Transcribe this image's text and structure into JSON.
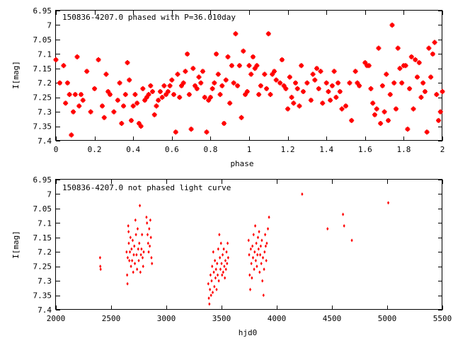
{
  "chart_data": [
    {
      "type": "scatter",
      "title": "150836-4207.0 phased with P=36.010day",
      "xlabel": "phase",
      "ylabel": "I[mag]",
      "xlim": [
        0,
        2
      ],
      "ylim": [
        6.95,
        7.4
      ],
      "y_inverted": true,
      "x_ticks": [
        "0",
        "0.2",
        "0.4",
        "0.6",
        "0.8",
        "1",
        "1.2",
        "1.4",
        "1.6",
        "1.8",
        "2"
      ],
      "y_ticks": [
        "6.95",
        "7",
        "7.05",
        "7.1",
        "7.15",
        "7.2",
        "7.25",
        "7.3",
        "7.35",
        "7.4"
      ],
      "marker_color": "#ff0000",
      "grid": false,
      "points": [
        [
          0.0,
          7.12
        ],
        [
          0.02,
          7.2
        ],
        [
          0.04,
          7.14
        ],
        [
          0.05,
          7.27
        ],
        [
          0.06,
          7.2
        ],
        [
          0.07,
          7.24
        ],
        [
          0.08,
          7.38
        ],
        [
          0.09,
          7.3
        ],
        [
          0.1,
          7.24
        ],
        [
          0.11,
          7.11
        ],
        [
          0.12,
          7.28
        ],
        [
          0.13,
          7.24
        ],
        [
          0.14,
          7.26
        ],
        [
          0.16,
          7.16
        ],
        [
          0.18,
          7.3
        ],
        [
          0.2,
          7.22
        ],
        [
          0.22,
          7.12
        ],
        [
          0.24,
          7.28
        ],
        [
          0.25,
          7.32
        ],
        [
          0.26,
          7.17
        ],
        [
          0.27,
          7.23
        ],
        [
          0.28,
          7.24
        ],
        [
          0.3,
          7.3
        ],
        [
          0.32,
          7.26
        ],
        [
          0.33,
          7.2
        ],
        [
          0.34,
          7.34
        ],
        [
          0.35,
          7.28
        ],
        [
          0.36,
          7.24
        ],
        [
          0.37,
          7.13
        ],
        [
          0.38,
          7.19
        ],
        [
          0.39,
          7.33
        ],
        [
          0.4,
          7.28
        ],
        [
          0.41,
          7.24
        ],
        [
          0.42,
          7.27
        ],
        [
          0.43,
          7.34
        ],
        [
          0.44,
          7.35
        ],
        [
          0.45,
          7.22
        ],
        [
          0.46,
          7.26
        ],
        [
          0.47,
          7.25
        ],
        [
          0.48,
          7.24
        ],
        [
          0.49,
          7.21
        ],
        [
          0.5,
          7.23
        ],
        [
          0.51,
          7.31
        ],
        [
          0.52,
          7.28
        ],
        [
          0.53,
          7.26
        ],
        [
          0.54,
          7.23
        ],
        [
          0.55,
          7.25
        ],
        [
          0.56,
          7.21
        ],
        [
          0.57,
          7.24
        ],
        [
          0.58,
          7.23
        ],
        [
          0.59,
          7.21
        ],
        [
          0.6,
          7.19
        ],
        [
          0.61,
          7.24
        ],
        [
          0.62,
          7.37
        ],
        [
          0.63,
          7.17
        ],
        [
          0.64,
          7.25
        ],
        [
          0.65,
          7.21
        ],
        [
          0.66,
          7.2
        ],
        [
          0.67,
          7.16
        ],
        [
          0.68,
          7.1
        ],
        [
          0.69,
          7.24
        ],
        [
          0.7,
          7.36
        ],
        [
          0.71,
          7.15
        ],
        [
          0.72,
          7.21
        ],
        [
          0.73,
          7.22
        ],
        [
          0.74,
          7.18
        ],
        [
          0.75,
          7.2
        ],
        [
          0.76,
          7.16
        ],
        [
          0.77,
          7.25
        ],
        [
          0.78,
          7.37
        ],
        [
          0.79,
          7.26
        ],
        [
          0.8,
          7.25
        ],
        [
          0.81,
          7.22
        ],
        [
          0.82,
          7.2
        ],
        [
          0.83,
          7.1
        ],
        [
          0.84,
          7.17
        ],
        [
          0.85,
          7.24
        ],
        [
          0.86,
          7.21
        ],
        [
          0.87,
          7.34
        ],
        [
          0.88,
          7.19
        ],
        [
          0.89,
          7.11
        ],
        [
          0.9,
          7.27
        ],
        [
          0.91,
          7.14
        ],
        [
          0.92,
          7.2
        ],
        [
          0.93,
          7.03
        ],
        [
          0.94,
          7.21
        ],
        [
          0.95,
          7.14
        ],
        [
          0.96,
          7.32
        ],
        [
          0.97,
          7.09
        ],
        [
          0.98,
          7.24
        ],
        [
          0.99,
          7.23
        ],
        [
          1.0,
          7.14
        ],
        [
          1.01,
          7.17
        ],
        [
          1.02,
          7.11
        ],
        [
          1.03,
          7.15
        ],
        [
          1.04,
          7.14
        ],
        [
          1.05,
          7.24
        ],
        [
          1.06,
          7.21
        ],
        [
          1.08,
          7.17
        ],
        [
          1.09,
          7.22
        ],
        [
          1.1,
          7.03
        ],
        [
          1.11,
          7.24
        ],
        [
          1.12,
          7.17
        ],
        [
          1.13,
          7.16
        ],
        [
          1.14,
          7.19
        ],
        [
          1.16,
          7.2
        ],
        [
          1.17,
          7.12
        ],
        [
          1.18,
          7.21
        ],
        [
          1.19,
          7.22
        ],
        [
          1.2,
          7.29
        ],
        [
          1.21,
          7.18
        ],
        [
          1.22,
          7.25
        ],
        [
          1.23,
          7.27
        ],
        [
          1.24,
          7.2
        ],
        [
          1.25,
          7.22
        ],
        [
          1.26,
          7.28
        ],
        [
          1.27,
          7.14
        ],
        [
          1.28,
          7.23
        ],
        [
          1.3,
          7.2
        ],
        [
          1.32,
          7.26
        ],
        [
          1.33,
          7.17
        ],
        [
          1.34,
          7.19
        ],
        [
          1.35,
          7.15
        ],
        [
          1.36,
          7.22
        ],
        [
          1.37,
          7.16
        ],
        [
          1.38,
          7.27
        ],
        [
          1.4,
          7.2
        ],
        [
          1.41,
          7.23
        ],
        [
          1.42,
          7.26
        ],
        [
          1.43,
          7.21
        ],
        [
          1.44,
          7.16
        ],
        [
          1.45,
          7.25
        ],
        [
          1.46,
          7.2
        ],
        [
          1.47,
          7.23
        ],
        [
          1.48,
          7.29
        ],
        [
          1.5,
          7.28
        ],
        [
          1.52,
          7.2
        ],
        [
          1.53,
          7.33
        ],
        [
          1.55,
          7.16
        ],
        [
          1.56,
          7.2
        ],
        [
          1.57,
          7.21
        ],
        [
          1.6,
          7.13
        ],
        [
          1.61,
          7.14
        ],
        [
          1.62,
          7.14
        ],
        [
          1.63,
          7.22
        ],
        [
          1.64,
          7.27
        ],
        [
          1.65,
          7.31
        ],
        [
          1.66,
          7.29
        ],
        [
          1.67,
          7.08
        ],
        [
          1.68,
          7.34
        ],
        [
          1.69,
          7.21
        ],
        [
          1.7,
          7.3
        ],
        [
          1.71,
          7.17
        ],
        [
          1.72,
          7.33
        ],
        [
          1.73,
          7.24
        ],
        [
          1.74,
          7.0
        ],
        [
          1.75,
          7.2
        ],
        [
          1.76,
          7.29
        ],
        [
          1.77,
          7.08
        ],
        [
          1.78,
          7.15
        ],
        [
          1.79,
          7.2
        ],
        [
          1.8,
          7.14
        ],
        [
          1.81,
          7.14
        ],
        [
          1.82,
          7.36
        ],
        [
          1.83,
          7.22
        ],
        [
          1.84,
          7.11
        ],
        [
          1.85,
          7.29
        ],
        [
          1.86,
          7.12
        ],
        [
          1.87,
          7.18
        ],
        [
          1.88,
          7.13
        ],
        [
          1.89,
          7.25
        ],
        [
          1.9,
          7.2
        ],
        [
          1.91,
          7.23
        ],
        [
          1.92,
          7.37
        ],
        [
          1.93,
          7.08
        ],
        [
          1.94,
          7.18
        ],
        [
          1.95,
          7.1
        ],
        [
          1.96,
          7.06
        ],
        [
          1.97,
          7.24
        ],
        [
          1.98,
          7.33
        ],
        [
          1.99,
          7.3
        ],
        [
          2.0,
          7.23
        ]
      ]
    },
    {
      "type": "scatter",
      "title": "150836-4207.0 not phased light curve",
      "xlabel": "hjd0",
      "ylabel": "I[mag]",
      "xlim": [
        2000,
        5500
      ],
      "ylim": [
        6.95,
        7.4
      ],
      "y_inverted": true,
      "x_ticks": [
        "2000",
        "2500",
        "3000",
        "3500",
        "4000",
        "4500",
        "5000",
        "5500"
      ],
      "y_ticks": [
        "6.95",
        "7",
        "7.05",
        "7.1",
        "7.15",
        "7.2",
        "7.25",
        "7.3",
        "7.35",
        "7.4"
      ],
      "marker_color": "#ff0000",
      "grid": false,
      "points": [
        [
          2400,
          7.22
        ],
        [
          2402,
          7.25
        ],
        [
          2405,
          7.26
        ],
        [
          2640,
          7.2
        ],
        [
          2645,
          7.28
        ],
        [
          2648,
          7.31
        ],
        [
          2650,
          7.22
        ],
        [
          2655,
          7.11
        ],
        [
          2658,
          7.13
        ],
        [
          2660,
          7.17
        ],
        [
          2665,
          7.23
        ],
        [
          2670,
          7.2
        ],
        [
          2675,
          7.15
        ],
        [
          2680,
          7.25
        ],
        [
          2685,
          7.19
        ],
        [
          2690,
          7.23
        ],
        [
          2695,
          7.16
        ],
        [
          2700,
          7.27
        ],
        [
          2705,
          7.21
        ],
        [
          2710,
          7.18
        ],
        [
          2715,
          7.24
        ],
        [
          2720,
          7.09
        ],
        [
          2725,
          7.14
        ],
        [
          2730,
          7.21
        ],
        [
          2735,
          7.26
        ],
        [
          2740,
          7.12
        ],
        [
          2745,
          7.19
        ],
        [
          2750,
          7.23
        ],
        [
          2755,
          7.17
        ],
        [
          2760,
          7.04
        ],
        [
          2765,
          7.27
        ],
        [
          2770,
          7.21
        ],
        [
          2775,
          7.19
        ],
        [
          2780,
          7.14
        ],
        [
          2785,
          7.22
        ],
        [
          2790,
          7.25
        ],
        [
          2795,
          7.2
        ],
        [
          2820,
          7.08
        ],
        [
          2825,
          7.1
        ],
        [
          2830,
          7.14
        ],
        [
          2835,
          7.17
        ],
        [
          2840,
          7.2
        ],
        [
          2845,
          7.12
        ],
        [
          2850,
          7.18
        ],
        [
          2855,
          7.09
        ],
        [
          2860,
          7.15
        ],
        [
          2865,
          7.22
        ],
        [
          2870,
          7.24
        ],
        [
          3380,
          7.31
        ],
        [
          3385,
          7.36
        ],
        [
          3390,
          7.38
        ],
        [
          3395,
          7.33
        ],
        [
          3400,
          7.28
        ],
        [
          3405,
          7.35
        ],
        [
          3410,
          7.3
        ],
        [
          3415,
          7.25
        ],
        [
          3420,
          7.34
        ],
        [
          3425,
          7.2
        ],
        [
          3430,
          7.27
        ],
        [
          3435,
          7.32
        ],
        [
          3440,
          7.23
        ],
        [
          3445,
          7.29
        ],
        [
          3450,
          7.26
        ],
        [
          3455,
          7.33
        ],
        [
          3460,
          7.24
        ],
        [
          3465,
          7.28
        ],
        [
          3470,
          7.19
        ],
        [
          3475,
          7.3
        ],
        [
          3480,
          7.14
        ],
        [
          3485,
          7.22
        ],
        [
          3490,
          7.26
        ],
        [
          3495,
          7.17
        ],
        [
          3500,
          7.24
        ],
        [
          3505,
          7.28
        ],
        [
          3510,
          7.21
        ],
        [
          3515,
          7.27
        ],
        [
          3520,
          7.19
        ],
        [
          3525,
          7.25
        ],
        [
          3530,
          7.29
        ],
        [
          3535,
          7.23
        ],
        [
          3540,
          7.26
        ],
        [
          3545,
          7.2
        ],
        [
          3550,
          7.24
        ],
        [
          3555,
          7.17
        ],
        [
          3560,
          7.22
        ],
        [
          3745,
          7.16
        ],
        [
          3750,
          7.21
        ],
        [
          3755,
          7.28
        ],
        [
          3760,
          7.33
        ],
        [
          3765,
          7.19
        ],
        [
          3770,
          7.24
        ],
        [
          3775,
          7.29
        ],
        [
          3780,
          7.18
        ],
        [
          3785,
          7.22
        ],
        [
          3790,
          7.14
        ],
        [
          3795,
          7.26
        ],
        [
          3800,
          7.2
        ],
        [
          3805,
          7.11
        ],
        [
          3810,
          7.23
        ],
        [
          3815,
          7.17
        ],
        [
          3820,
          7.25
        ],
        [
          3825,
          7.21
        ],
        [
          3830,
          7.15
        ],
        [
          3835,
          7.19
        ],
        [
          3840,
          7.13
        ],
        [
          3845,
          7.27
        ],
        [
          3850,
          7.21
        ],
        [
          3855,
          7.18
        ],
        [
          3860,
          7.24
        ],
        [
          3865,
          7.16
        ],
        [
          3870,
          7.3
        ],
        [
          3875,
          7.22
        ],
        [
          3880,
          7.35
        ],
        [
          3885,
          7.26
        ],
        [
          3890,
          7.2
        ],
        [
          3895,
          7.14
        ],
        [
          3900,
          7.18
        ],
        [
          3905,
          7.23
        ],
        [
          3910,
          7.17
        ],
        [
          3920,
          7.12
        ],
        [
          3930,
          7.08
        ],
        [
          4230,
          7.0
        ],
        [
          4460,
          7.12
        ],
        [
          4600,
          7.07
        ],
        [
          4610,
          7.11
        ],
        [
          4680,
          7.16
        ],
        [
          5010,
          7.03
        ]
      ]
    }
  ]
}
